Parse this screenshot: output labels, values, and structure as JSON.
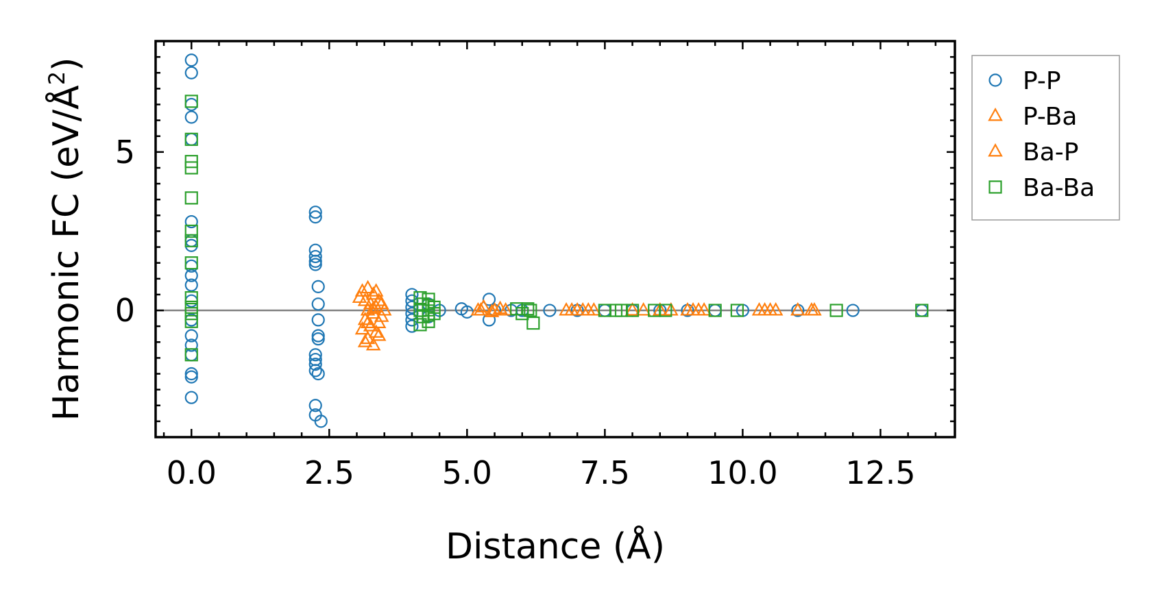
{
  "chart_data": {
    "type": "scatter",
    "xlabel": "Distance (Å)",
    "ylabel_main": "Harmonic FC (eV/Å",
    "ylabel_sup": "2",
    "ylabel_close": ")",
    "xlim": [
      -0.65,
      13.85
    ],
    "ylim": [
      -4.0,
      8.5
    ],
    "x_ticks": [
      {
        "value": 0.0,
        "label": "0.0"
      },
      {
        "value": 2.5,
        "label": "2.5"
      },
      {
        "value": 5.0,
        "label": "5.0"
      },
      {
        "value": 7.5,
        "label": "7.5"
      },
      {
        "value": 10.0,
        "label": "10.0"
      },
      {
        "value": 12.5,
        "label": "12.5"
      }
    ],
    "y_ticks": [
      {
        "value": 0,
        "label": "0"
      },
      {
        "value": 5,
        "label": "5"
      }
    ],
    "zero_line": true,
    "legend_position": "outside-right",
    "series": [
      {
        "name": "P-P",
        "color": "#1f77b4",
        "marker": "circle",
        "points": [
          [
            0.0,
            7.9
          ],
          [
            0.0,
            7.5
          ],
          [
            0.0,
            6.5
          ],
          [
            0.0,
            6.1
          ],
          [
            0.0,
            5.4
          ],
          [
            0.0,
            2.8
          ],
          [
            0.0,
            2.2
          ],
          [
            0.0,
            2.05
          ],
          [
            0.0,
            1.4
          ],
          [
            0.0,
            1.1
          ],
          [
            0.0,
            0.8
          ],
          [
            0.0,
            0.3
          ],
          [
            0.0,
            -0.3
          ],
          [
            0.0,
            -0.8
          ],
          [
            0.0,
            -1.1
          ],
          [
            0.0,
            -1.4
          ],
          [
            0.0,
            -2.0
          ],
          [
            0.0,
            -2.1
          ],
          [
            0.0,
            -2.75
          ],
          [
            2.25,
            3.1
          ],
          [
            2.25,
            2.95
          ],
          [
            2.25,
            1.9
          ],
          [
            2.25,
            1.7
          ],
          [
            2.25,
            1.55
          ],
          [
            2.25,
            1.45
          ],
          [
            2.25,
            -1.4
          ],
          [
            2.25,
            -1.55
          ],
          [
            2.25,
            -1.7
          ],
          [
            2.25,
            -1.9
          ],
          [
            2.25,
            -3.0
          ],
          [
            2.25,
            -3.3
          ],
          [
            2.35,
            -3.5
          ],
          [
            2.3,
            -2.0
          ],
          [
            2.3,
            0.75
          ],
          [
            2.3,
            0.2
          ],
          [
            2.3,
            -0.3
          ],
          [
            2.3,
            -0.8
          ],
          [
            2.3,
            -0.9
          ],
          [
            4.0,
            0.5
          ],
          [
            4.0,
            0.3
          ],
          [
            4.0,
            0.1
          ],
          [
            4.0,
            -0.1
          ],
          [
            4.0,
            -0.3
          ],
          [
            4.0,
            -0.5
          ],
          [
            4.3,
            0.2
          ],
          [
            4.3,
            -0.2
          ],
          [
            4.5,
            0.0
          ],
          [
            4.9,
            0.05
          ],
          [
            5.0,
            -0.05
          ],
          [
            5.4,
            0.35
          ],
          [
            5.4,
            -0.3
          ],
          [
            5.5,
            0.0
          ],
          [
            5.8,
            0.0
          ],
          [
            6.0,
            0.0
          ],
          [
            6.5,
            0.0
          ],
          [
            7.0,
            0.0
          ],
          [
            7.5,
            0.0
          ],
          [
            8.0,
            0.0
          ],
          [
            8.5,
            0.0
          ],
          [
            9.0,
            0.0
          ],
          [
            9.5,
            0.0
          ],
          [
            10.0,
            0.0
          ],
          [
            11.0,
            0.0
          ],
          [
            12.0,
            0.0
          ],
          [
            13.25,
            0.0
          ]
        ]
      },
      {
        "name": "P-Ba",
        "color": "#ff7f0e",
        "marker": "triangle",
        "points": [
          [
            3.1,
            0.6
          ],
          [
            3.2,
            0.7
          ],
          [
            3.3,
            0.5
          ],
          [
            3.15,
            0.3
          ],
          [
            3.25,
            0.2
          ],
          [
            3.35,
            0.1
          ],
          [
            3.4,
            0.3
          ],
          [
            3.2,
            0.0
          ],
          [
            3.3,
            -0.1
          ],
          [
            3.15,
            -0.3
          ],
          [
            3.25,
            -0.5
          ],
          [
            3.35,
            -0.7
          ],
          [
            3.2,
            -0.9
          ],
          [
            3.3,
            -1.1
          ],
          [
            3.45,
            -0.2
          ],
          [
            3.5,
            0.0
          ],
          [
            3.1,
            -0.6
          ],
          [
            3.4,
            -0.8
          ],
          [
            5.2,
            0.0
          ],
          [
            5.3,
            0.1
          ],
          [
            5.5,
            0.0
          ],
          [
            5.7,
            0.0
          ],
          [
            6.8,
            0.0
          ],
          [
            7.0,
            0.0
          ],
          [
            7.2,
            0.0
          ],
          [
            8.0,
            0.0
          ],
          [
            8.5,
            0.0
          ],
          [
            9.0,
            0.0
          ],
          [
            9.3,
            0.0
          ],
          [
            10.3,
            0.0
          ],
          [
            10.5,
            0.0
          ],
          [
            11.0,
            0.0
          ],
          [
            11.3,
            0.0
          ]
        ]
      },
      {
        "name": "Ba-P",
        "color": "#ff7f0e",
        "marker": "triangle",
        "points": [
          [
            3.05,
            0.4
          ],
          [
            3.2,
            -0.4
          ],
          [
            3.3,
            0.05
          ],
          [
            3.4,
            -0.4
          ],
          [
            3.45,
            0.2
          ],
          [
            3.15,
            -1.0
          ],
          [
            3.35,
            0.6
          ],
          [
            5.25,
            0.0
          ],
          [
            5.45,
            -0.05
          ],
          [
            5.6,
            0.05
          ],
          [
            6.9,
            0.0
          ],
          [
            7.1,
            0.0
          ],
          [
            7.3,
            0.0
          ],
          [
            8.2,
            0.0
          ],
          [
            8.7,
            0.0
          ],
          [
            9.1,
            0.0
          ],
          [
            9.2,
            0.0
          ],
          [
            10.4,
            0.0
          ],
          [
            10.6,
            0.0
          ],
          [
            11.25,
            0.0
          ]
        ]
      },
      {
        "name": "Ba-Ba",
        "color": "#2ca02c",
        "marker": "square",
        "points": [
          [
            0.0,
            6.6
          ],
          [
            0.0,
            5.4
          ],
          [
            0.0,
            4.7
          ],
          [
            0.0,
            4.5
          ],
          [
            0.0,
            3.55
          ],
          [
            0.0,
            2.5
          ],
          [
            0.0,
            2.2
          ],
          [
            0.0,
            1.5
          ],
          [
            0.0,
            0.4
          ],
          [
            0.0,
            0.1
          ],
          [
            0.0,
            -0.1
          ],
          [
            0.0,
            -0.35
          ],
          [
            0.0,
            -1.4
          ],
          [
            4.15,
            0.4
          ],
          [
            4.2,
            0.2
          ],
          [
            4.15,
            0.0
          ],
          [
            4.2,
            -0.2
          ],
          [
            4.15,
            -0.45
          ],
          [
            4.3,
            0.35
          ],
          [
            4.3,
            0.15
          ],
          [
            4.3,
            -0.15
          ],
          [
            4.3,
            -0.35
          ],
          [
            4.4,
            0.1
          ],
          [
            4.4,
            -0.1
          ],
          [
            5.9,
            0.05
          ],
          [
            6.0,
            -0.1
          ],
          [
            6.1,
            0.05
          ],
          [
            6.2,
            -0.4
          ],
          [
            6.15,
            0.0
          ],
          [
            7.5,
            0.0
          ],
          [
            7.7,
            0.0
          ],
          [
            7.8,
            0.0
          ],
          [
            8.0,
            0.0
          ],
          [
            8.4,
            0.0
          ],
          [
            8.6,
            0.0
          ],
          [
            9.5,
            0.0
          ],
          [
            9.9,
            0.0
          ],
          [
            11.7,
            0.0
          ],
          [
            13.25,
            0.0
          ]
        ]
      }
    ]
  }
}
